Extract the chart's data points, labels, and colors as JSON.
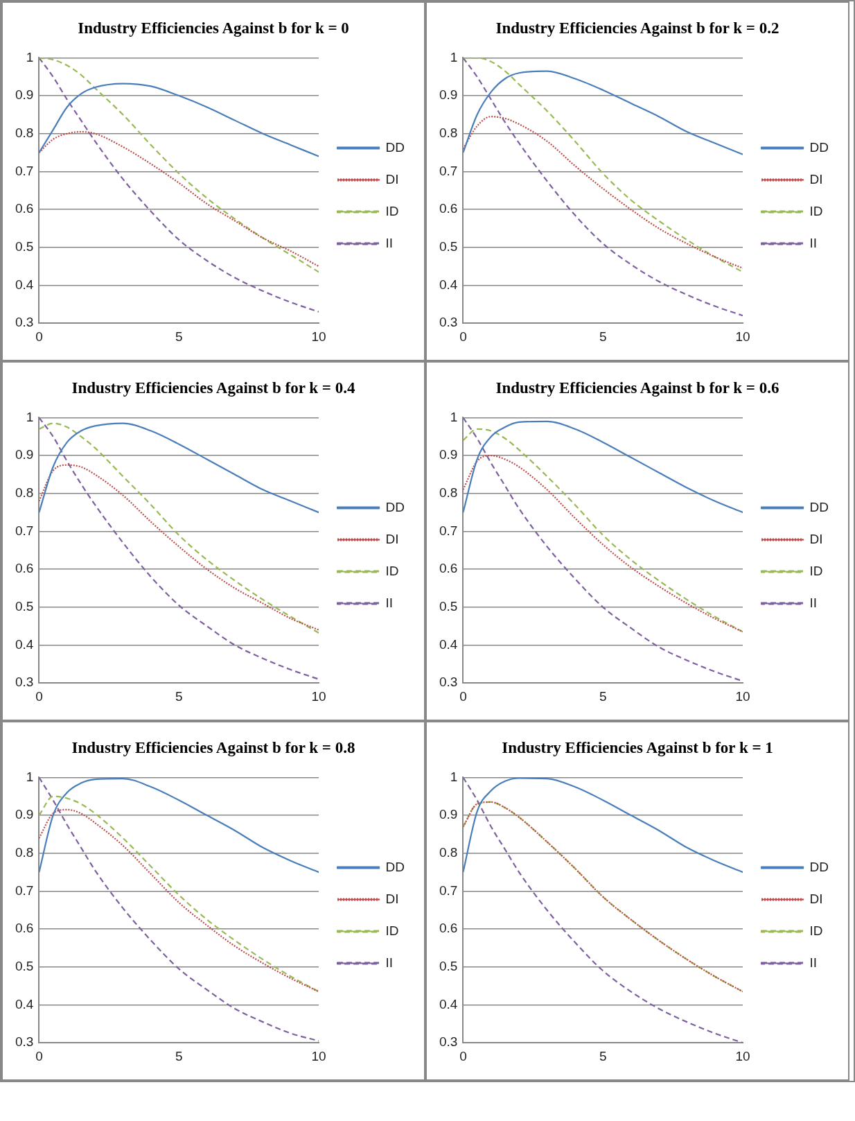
{
  "chart_data": [
    {
      "type": "line",
      "title": "Industry Efficiencies Against b for k = 0",
      "x": [
        0,
        0.5,
        1,
        1.5,
        2,
        3,
        4,
        5,
        6,
        7,
        8,
        9,
        10
      ],
      "xlim": [
        0,
        10
      ],
      "xticks": [
        0,
        5,
        10
      ],
      "ylim": [
        0.3,
        1
      ],
      "yticks": [
        0.3,
        0.4,
        0.5,
        0.6,
        0.7,
        0.8,
        0.9,
        1
      ],
      "grid": "y",
      "legend": "right",
      "marker": "none",
      "series": [
        {
          "name": "DD",
          "color": "#4a7ebb",
          "line_style": "solid",
          "values": [
            0.75,
            0.81,
            0.87,
            0.905,
            0.922,
            0.932,
            0.925,
            0.9,
            0.87,
            0.835,
            0.8,
            0.77,
            0.74
          ]
        },
        {
          "name": "DI",
          "color": "#be4b48",
          "line_style": "dotted",
          "values": [
            0.75,
            0.785,
            0.8,
            0.805,
            0.8,
            0.765,
            0.72,
            0.67,
            0.615,
            0.57,
            0.525,
            0.49,
            0.45
          ]
        },
        {
          "name": "ID",
          "color": "#98b954",
          "line_style": "dashed",
          "values": [
            1.0,
            0.995,
            0.98,
            0.955,
            0.92,
            0.85,
            0.77,
            0.695,
            0.63,
            0.575,
            0.525,
            0.48,
            0.435
          ]
        },
        {
          "name": "II",
          "color": "#7d60a0",
          "line_style": "dashed",
          "values": [
            1.0,
            0.95,
            0.89,
            0.835,
            0.78,
            0.68,
            0.595,
            0.52,
            0.465,
            0.42,
            0.385,
            0.355,
            0.33
          ]
        }
      ]
    },
    {
      "type": "line",
      "title": "Industry Efficiencies Against b for k = 0.2",
      "x": [
        0,
        0.5,
        1,
        1.5,
        2,
        3,
        4,
        5,
        6,
        7,
        8,
        9,
        10
      ],
      "xlim": [
        0,
        10
      ],
      "xticks": [
        0,
        5,
        10
      ],
      "ylim": [
        0.3,
        1
      ],
      "yticks": [
        0.3,
        0.4,
        0.5,
        0.6,
        0.7,
        0.8,
        0.9,
        1
      ],
      "grid": "y",
      "legend": "right",
      "marker": "none",
      "series": [
        {
          "name": "DD",
          "color": "#4a7ebb",
          "line_style": "solid",
          "values": [
            0.75,
            0.85,
            0.91,
            0.945,
            0.96,
            0.965,
            0.945,
            0.915,
            0.88,
            0.845,
            0.805,
            0.775,
            0.745
          ]
        },
        {
          "name": "DI",
          "color": "#be4b48",
          "line_style": "dotted",
          "values": [
            0.76,
            0.82,
            0.845,
            0.84,
            0.825,
            0.78,
            0.715,
            0.655,
            0.6,
            0.55,
            0.51,
            0.475,
            0.445
          ]
        },
        {
          "name": "ID",
          "color": "#98b954",
          "line_style": "dashed",
          "values": [
            1.0,
            1.0,
            0.99,
            0.965,
            0.93,
            0.86,
            0.78,
            0.695,
            0.625,
            0.57,
            0.52,
            0.475,
            0.435
          ]
        },
        {
          "name": "II",
          "color": "#7d60a0",
          "line_style": "dashed",
          "values": [
            1.0,
            0.95,
            0.89,
            0.83,
            0.775,
            0.675,
            0.585,
            0.51,
            0.455,
            0.41,
            0.375,
            0.345,
            0.32
          ]
        }
      ]
    },
    {
      "type": "line",
      "title": "Industry Efficiencies Against b for k = 0.4",
      "x": [
        0,
        0.5,
        1,
        1.5,
        2,
        3,
        4,
        5,
        6,
        7,
        8,
        9,
        10
      ],
      "xlim": [
        0,
        10
      ],
      "xticks": [
        0,
        5,
        10
      ],
      "ylim": [
        0.3,
        1
      ],
      "yticks": [
        0.3,
        0.4,
        0.5,
        0.6,
        0.7,
        0.8,
        0.9,
        1
      ],
      "grid": "y",
      "legend": "right",
      "marker": "none",
      "series": [
        {
          "name": "DD",
          "color": "#4a7ebb",
          "line_style": "solid",
          "values": [
            0.75,
            0.87,
            0.935,
            0.965,
            0.978,
            0.985,
            0.965,
            0.93,
            0.89,
            0.85,
            0.81,
            0.78,
            0.75
          ]
        },
        {
          "name": "DI",
          "color": "#be4b48",
          "line_style": "dotted",
          "values": [
            0.78,
            0.86,
            0.875,
            0.87,
            0.85,
            0.795,
            0.725,
            0.66,
            0.6,
            0.55,
            0.51,
            0.47,
            0.44
          ]
        },
        {
          "name": "ID",
          "color": "#98b954",
          "line_style": "dashed",
          "values": [
            0.97,
            0.985,
            0.975,
            0.95,
            0.92,
            0.845,
            0.77,
            0.69,
            0.625,
            0.57,
            0.52,
            0.475,
            0.432
          ]
        },
        {
          "name": "II",
          "color": "#7d60a0",
          "line_style": "dashed",
          "values": [
            1.0,
            0.95,
            0.885,
            0.825,
            0.77,
            0.67,
            0.58,
            0.505,
            0.45,
            0.4,
            0.365,
            0.335,
            0.31
          ]
        }
      ]
    },
    {
      "type": "line",
      "title": "Industry Efficiencies Against b for k = 0.6",
      "x": [
        0,
        0.5,
        1,
        1.5,
        2,
        3,
        4,
        5,
        6,
        7,
        8,
        9,
        10
      ],
      "xlim": [
        0,
        10
      ],
      "xticks": [
        0,
        5,
        10
      ],
      "ylim": [
        0.3,
        1
      ],
      "yticks": [
        0.3,
        0.4,
        0.5,
        0.6,
        0.7,
        0.8,
        0.9,
        1
      ],
      "grid": "y",
      "legend": "right",
      "marker": "none",
      "series": [
        {
          "name": "DD",
          "color": "#4a7ebb",
          "line_style": "solid",
          "values": [
            0.75,
            0.89,
            0.95,
            0.975,
            0.988,
            0.99,
            0.97,
            0.935,
            0.895,
            0.855,
            0.815,
            0.78,
            0.75
          ]
        },
        {
          "name": "DI",
          "color": "#be4b48",
          "line_style": "dotted",
          "values": [
            0.81,
            0.885,
            0.9,
            0.89,
            0.87,
            0.81,
            0.735,
            0.665,
            0.605,
            0.555,
            0.51,
            0.47,
            0.435
          ]
        },
        {
          "name": "ID",
          "color": "#98b954",
          "line_style": "dashed",
          "values": [
            0.94,
            0.97,
            0.965,
            0.945,
            0.915,
            0.845,
            0.77,
            0.69,
            0.625,
            0.57,
            0.52,
            0.475,
            0.435
          ]
        },
        {
          "name": "II",
          "color": "#7d60a0",
          "line_style": "dashed",
          "values": [
            1.0,
            0.945,
            0.88,
            0.82,
            0.76,
            0.66,
            0.575,
            0.5,
            0.445,
            0.395,
            0.36,
            0.33,
            0.305
          ]
        }
      ]
    },
    {
      "type": "line",
      "title": "Industry Efficiencies Against b for k = 0.8",
      "x": [
        0,
        0.5,
        1,
        1.5,
        2,
        3,
        4,
        5,
        6,
        7,
        8,
        9,
        10
      ],
      "xlim": [
        0,
        10
      ],
      "xticks": [
        0,
        5,
        10
      ],
      "ylim": [
        0.3,
        1
      ],
      "yticks": [
        0.3,
        0.4,
        0.5,
        0.6,
        0.7,
        0.8,
        0.9,
        1
      ],
      "grid": "y",
      "legend": "right",
      "marker": "none",
      "series": [
        {
          "name": "DD",
          "color": "#4a7ebb",
          "line_style": "solid",
          "values": [
            0.75,
            0.9,
            0.96,
            0.985,
            0.995,
            0.997,
            0.975,
            0.94,
            0.9,
            0.86,
            0.815,
            0.78,
            0.75
          ]
        },
        {
          "name": "DI",
          "color": "#be4b48",
          "line_style": "dotted",
          "values": [
            0.84,
            0.905,
            0.915,
            0.905,
            0.88,
            0.82,
            0.745,
            0.67,
            0.61,
            0.555,
            0.51,
            0.47,
            0.435
          ]
        },
        {
          "name": "ID",
          "color": "#98b954",
          "line_style": "dashed",
          "values": [
            0.9,
            0.95,
            0.945,
            0.93,
            0.905,
            0.84,
            0.765,
            0.69,
            0.625,
            0.57,
            0.52,
            0.475,
            0.435
          ]
        },
        {
          "name": "II",
          "color": "#7d60a0",
          "line_style": "dashed",
          "values": [
            1.0,
            0.94,
            0.875,
            0.815,
            0.755,
            0.655,
            0.57,
            0.495,
            0.44,
            0.39,
            0.355,
            0.325,
            0.305
          ]
        }
      ]
    },
    {
      "type": "line",
      "title": "Industry Efficiencies Against b for k = 1",
      "x": [
        0,
        0.5,
        1,
        1.5,
        2,
        3,
        4,
        5,
        6,
        7,
        8,
        9,
        10
      ],
      "xlim": [
        0,
        10
      ],
      "xticks": [
        0,
        5,
        10
      ],
      "ylim": [
        0.3,
        1
      ],
      "yticks": [
        0.3,
        0.4,
        0.5,
        0.6,
        0.7,
        0.8,
        0.9,
        1
      ],
      "grid": "y",
      "legend": "right",
      "marker": "none",
      "series": [
        {
          "name": "DD",
          "color": "#4a7ebb",
          "line_style": "solid",
          "values": [
            0.75,
            0.91,
            0.965,
            0.99,
            0.998,
            0.997,
            0.975,
            0.94,
            0.9,
            0.86,
            0.815,
            0.78,
            0.75
          ]
        },
        {
          "name": "DI",
          "color": "#be4b48",
          "line_style": "dotted",
          "values": [
            0.87,
            0.93,
            0.935,
            0.92,
            0.895,
            0.83,
            0.76,
            0.685,
            0.625,
            0.57,
            0.52,
            0.475,
            0.435
          ]
        },
        {
          "name": "ID",
          "color": "#98b954",
          "line_style": "dashed",
          "values": [
            0.87,
            0.93,
            0.935,
            0.92,
            0.895,
            0.83,
            0.76,
            0.685,
            0.625,
            0.57,
            0.52,
            0.475,
            0.435
          ]
        },
        {
          "name": "II",
          "color": "#7d60a0",
          "line_style": "dashed",
          "values": [
            1.0,
            0.94,
            0.87,
            0.81,
            0.75,
            0.65,
            0.565,
            0.49,
            0.435,
            0.39,
            0.355,
            0.325,
            0.3
          ]
        }
      ]
    }
  ]
}
